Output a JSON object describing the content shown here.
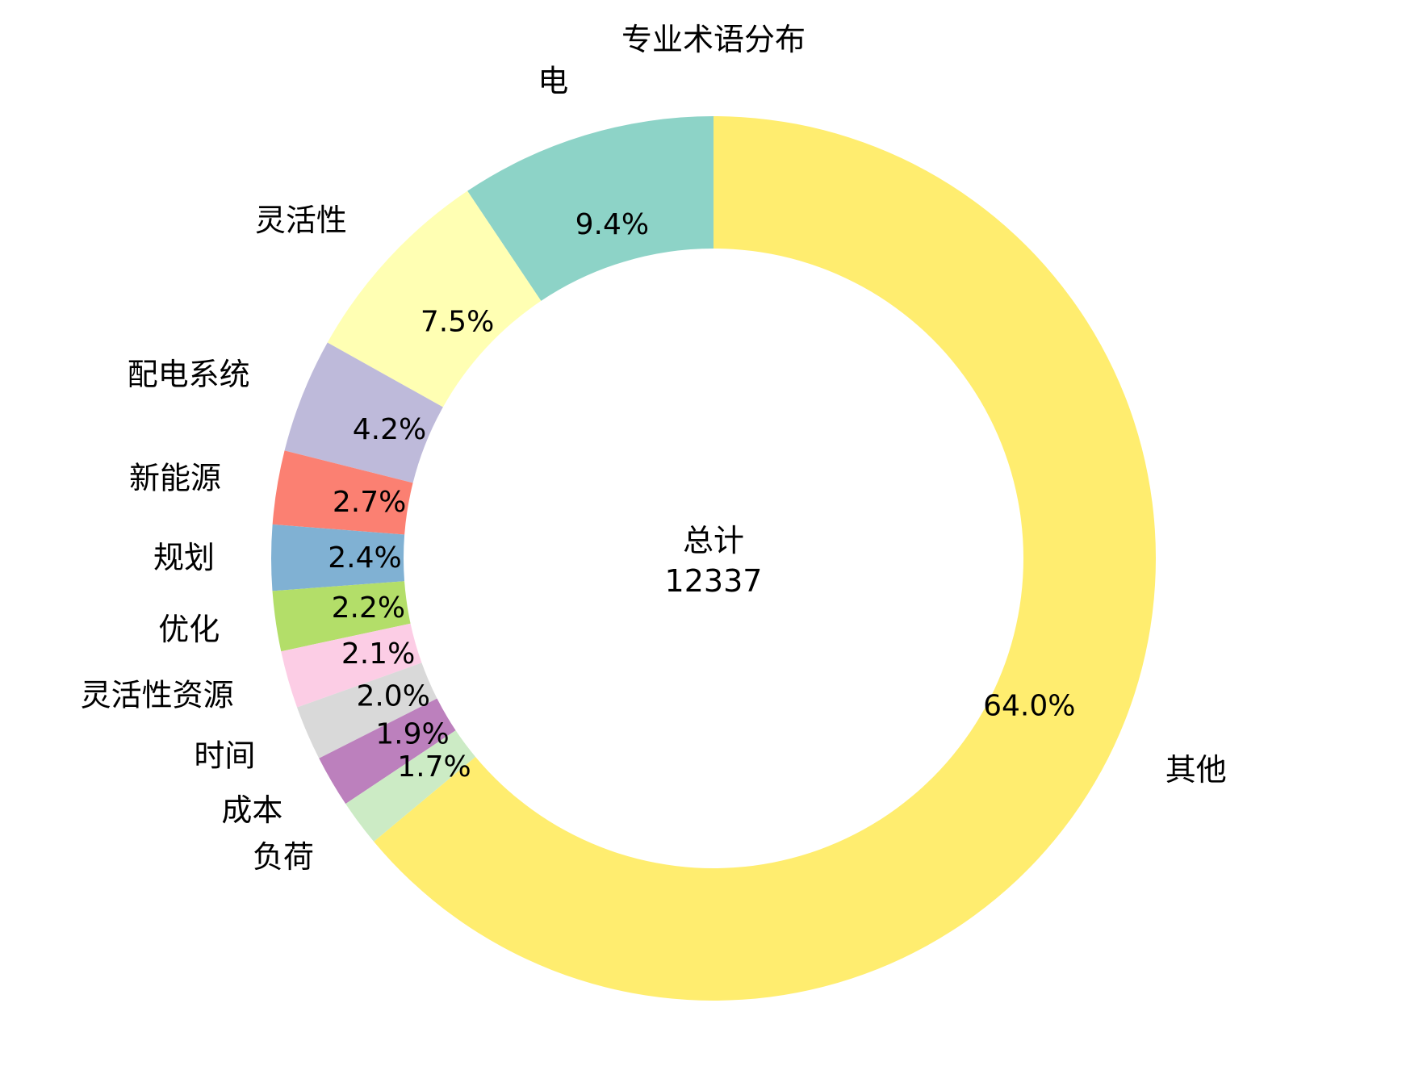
{
  "chart_data": {
    "type": "pie",
    "subtype": "donut",
    "title": "专业术语分布",
    "center_label": "总计",
    "center_value": "12337",
    "start": "top",
    "direction": "counterclockwise",
    "slices": [
      {
        "label": "电",
        "percent": 9.4,
        "display": "9.4%",
        "color": "#8dd3c7"
      },
      {
        "label": "灵活性",
        "percent": 7.5,
        "display": "7.5%",
        "color": "#ffffb3"
      },
      {
        "label": "配电系统",
        "percent": 4.2,
        "display": "4.2%",
        "color": "#bebada"
      },
      {
        "label": "新能源",
        "percent": 2.7,
        "display": "2.7%",
        "color": "#fb8072"
      },
      {
        "label": "规划",
        "percent": 2.4,
        "display": "2.4%",
        "color": "#80b1d3"
      },
      {
        "label": "优化",
        "percent": 2.2,
        "display": "2.2%",
        "color": "#b3de69"
      },
      {
        "label": "灵活性资源",
        "percent": 2.1,
        "display": "2.1%",
        "color": "#fccde5"
      },
      {
        "label": "时间",
        "percent": 2.0,
        "display": "2.0%",
        "color": "#d9d9d9"
      },
      {
        "label": "成本",
        "percent": 1.9,
        "display": "1.9%",
        "color": "#bc80bd"
      },
      {
        "label": "负荷",
        "percent": 1.7,
        "display": "1.7%",
        "color": "#ccebc5"
      },
      {
        "label": "其他",
        "percent": 64.0,
        "display": "64.0%",
        "color": "#ffed6f"
      }
    ]
  }
}
